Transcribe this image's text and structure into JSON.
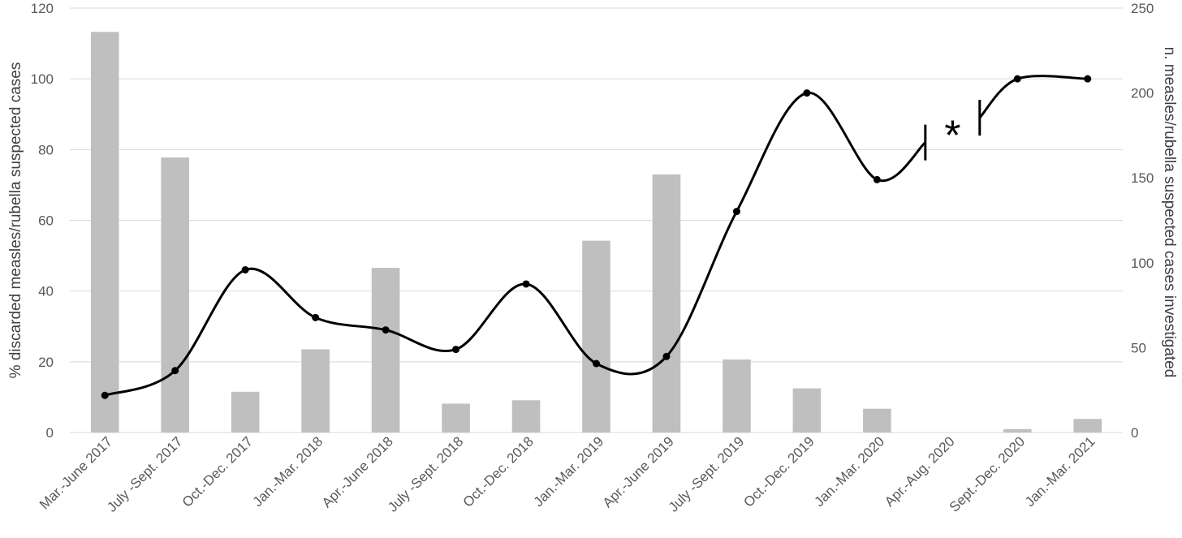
{
  "chart_data": {
    "type": "bar",
    "categories": [
      "Mar.-June 2017",
      "July -Sept. 2017",
      "Oct.-Dec. 2017",
      "Jan.-Mar. 2018",
      "Apr.-June 2018",
      "July -Sept. 2018",
      "Oct.-Dec. 2018",
      "Jan.-Mar. 2019",
      "Apr.-June 2019",
      "July -Sept. 2019",
      "Oct.-Dec. 2019",
      "Jan.-Mar. 2020",
      "Apr.-Aug. 2020",
      "Sept.-Dec. 2020",
      "Jan.-Mar. 2021"
    ],
    "series": [
      {
        "type": "bar",
        "axis": "right",
        "values": [
          236,
          162,
          24,
          49,
          97,
          17,
          19,
          113,
          152,
          43,
          26,
          14,
          0,
          2,
          8
        ]
      },
      {
        "type": "line",
        "axis": "left",
        "values": [
          10.5,
          17.5,
          46,
          32.5,
          29,
          23.5,
          42,
          19.5,
          21.5,
          62.5,
          96,
          71.5,
          null,
          100,
          100
        ]
      }
    ],
    "ylabel": "% discarded measles/rubella suspected cases",
    "y2label": "n. measles/rubella suspected cases investigated",
    "ylim": [
      0,
      120
    ],
    "y2lim": [
      0,
      250
    ],
    "yticks": [
      "0",
      "20",
      "40",
      "60",
      "80",
      "100",
      "120"
    ],
    "y2ticks": [
      "0",
      "50",
      "100",
      "150",
      "200",
      "250"
    ],
    "annotation": "*",
    "grid": true,
    "colors": {
      "bar": "#bfbfbf",
      "line": "#000000",
      "grid": "#d9d9d9",
      "text": "#595959"
    }
  }
}
